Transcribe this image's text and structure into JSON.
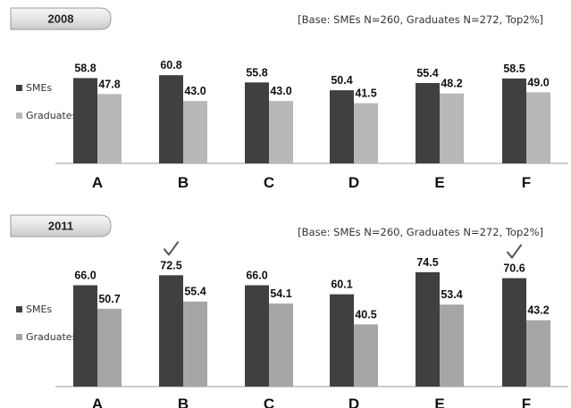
{
  "chart_data": [
    {
      "type": "bar",
      "title": "2008",
      "note": "[Base: SMEs N=260, Graduates N=272, Top2%]",
      "categories": [
        "A",
        "B",
        "C",
        "D",
        "E",
        "F"
      ],
      "series": [
        {
          "name": "SMEs",
          "values": [
            58.8,
            60.8,
            55.8,
            50.4,
            55.4,
            58.5
          ]
        },
        {
          "name": "Graduates",
          "values": [
            47.8,
            43.0,
            43.0,
            41.5,
            48.2,
            49.0
          ]
        }
      ],
      "value_labels": {
        "SMEs": [
          "58.8",
          "60.8",
          "55.8",
          "50.4",
          "55.4",
          "58.5"
        ],
        "Graduates": [
          "47.8",
          "43.0",
          "43.0",
          "41.5",
          "48.2",
          "49.0"
        ]
      },
      "checkmarks": [],
      "ylim": [
        0,
        80
      ],
      "grid": false,
      "legend_position": "left",
      "colors": {
        "SMEs": "#404040",
        "Graduates": "#b8b8b8"
      }
    },
    {
      "type": "bar",
      "title": "2011",
      "note": "[Base: SMEs N=260, Graduates N=272, Top2%]",
      "categories": [
        "A",
        "B",
        "C",
        "D",
        "E",
        "F"
      ],
      "series": [
        {
          "name": "SMEs",
          "values": [
            66.0,
            72.5,
            66.0,
            60.1,
            74.5,
            70.6
          ]
        },
        {
          "name": "Graduates",
          "values": [
            50.7,
            55.4,
            54.1,
            40.5,
            53.4,
            43.2
          ]
        }
      ],
      "value_labels": {
        "SMEs": [
          "66.0",
          "72.5",
          "66.0",
          "60.1",
          "74.5",
          "70.6"
        ],
        "Graduates": [
          "50.7",
          "55.4",
          "54.1",
          "40.5",
          "53.4",
          "43.2"
        ]
      },
      "checkmarks": [
        "B",
        "F"
      ],
      "ylim": [
        0,
        95
      ],
      "grid": false,
      "legend_position": "left",
      "colors": {
        "SMEs": "#404040",
        "Graduates": "#a6a6a6"
      }
    }
  ]
}
